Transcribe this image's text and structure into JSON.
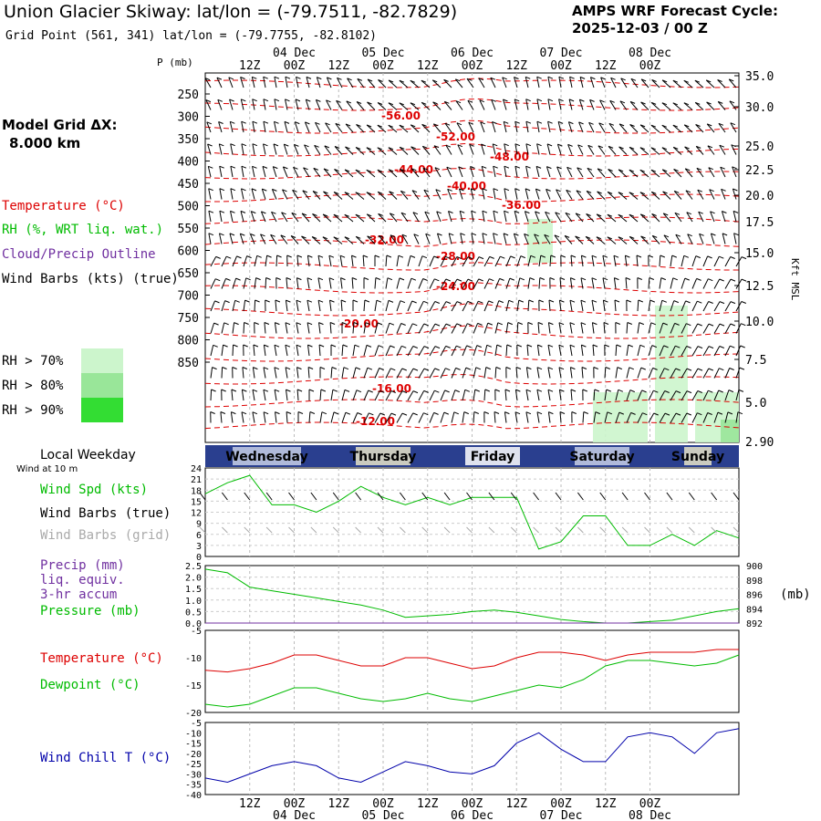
{
  "header": {
    "title": "Union Glacier Skiway:  lat/lon = (-79.7511, -82.7829)",
    "subtitle": "Grid Point (561, 341) lat/lon = (-79.7755, -82.8102)",
    "cycle_label": "AMPS WRF Forecast Cycle:",
    "cycle_value": "2025-12-03 / 00  Z"
  },
  "left_labels": {
    "model_grid": "Model Grid ΔX:",
    "model_grid_value": "8.000 km",
    "temperature": "Temperature (°C)",
    "rh": "RH (%, WRT liq. wat.)",
    "cloud": "Cloud/Precip Outline",
    "wind_barbs": "Wind Barbs (kts) (true)",
    "rh70": "RH > 70%",
    "rh80": "RH > 80%",
    "rh90": "RH > 90%",
    "local_weekday": "Local Weekday",
    "wind10": "Wind at 10 m",
    "wind_spd": "Wind Spd (kts)",
    "wind_true": "Wind Barbs (true)",
    "wind_grid": "Wind Barbs (grid)",
    "precip1": "Precip (mm)",
    "precip2": "liq. equiv.",
    "precip3": "3-hr accum",
    "pressure": "Pressure (mb)",
    "pressure_unit": "(mb)",
    "temp2": "Temperature (°C)",
    "dewpoint": "Dewpoint (°C)",
    "windchill": "Wind Chill T (°C)",
    "p_axis": "P (mb)",
    "kft": "Kft MSL"
  },
  "colors": {
    "temp": "#dd0000",
    "rh": "#00bb00",
    "cloud": "#7030a0",
    "windchill": "#0000aa",
    "grid": "#aaaaaa",
    "rh70": "#ccf5cc",
    "rh80": "#99e699",
    "rh90": "#33dd33",
    "daybar": "#2a3f8f"
  },
  "chart_data": {
    "type": "line",
    "time_ticks_top": [
      "12Z",
      "00Z",
      "12Z",
      "00Z",
      "12Z",
      "00Z",
      "12Z",
      "00Z",
      "12Z",
      "00Z"
    ],
    "date_labels": [
      "04 Dec",
      "05 Dec",
      "06 Dec",
      "07 Dec",
      "08 Dec"
    ],
    "weekdays": [
      "Wednesday",
      "Thursday",
      "Friday",
      "Saturday",
      "Sunday"
    ],
    "sounding": {
      "pressure_ticks": [
        "250",
        "300",
        "350",
        "400",
        "450",
        "500",
        "550",
        "600",
        "650",
        "700",
        "750",
        "800",
        "850"
      ],
      "height_ticks": [
        "35.0",
        "30.0",
        "25.0",
        "22.5",
        "20.0",
        "17.5",
        "15.0",
        "12.5",
        "10.0",
        "7.5",
        "5.0",
        "2.90"
      ],
      "temperature_labels": [
        "-56.00",
        "-52.00",
        "-48.00",
        "-44.00",
        "-40.00",
        "-36.00",
        "-32.00",
        "-28.00",
        "-24.00",
        "-20.00",
        "-16.00",
        "-12.00"
      ]
    },
    "wind10": {
      "ylim": [
        0,
        24
      ],
      "yticks": [
        "24",
        "21",
        "18",
        "15",
        "12",
        "9",
        "6",
        "3",
        "0"
      ],
      "hours": [
        0,
        6,
        12,
        18,
        24,
        30,
        36,
        42,
        48,
        54,
        60,
        66,
        72,
        78,
        84,
        90,
        96,
        102,
        108,
        114,
        120,
        126,
        132,
        138,
        144
      ],
      "speed": [
        17,
        20,
        22,
        14,
        14,
        12,
        15,
        19,
        16,
        14,
        16,
        14,
        16,
        16,
        16,
        2,
        4,
        11,
        11,
        3,
        3,
        6,
        3,
        7,
        5
      ]
    },
    "precip_pressure": {
      "precip_yticks": [
        "2.5",
        "2.0",
        "1.5",
        "1.0",
        "0.5",
        "0.0"
      ],
      "pressure_yticks": [
        "900",
        "898",
        "896",
        "894",
        "892"
      ],
      "precip": [
        0,
        0,
        0,
        0,
        0,
        0,
        0,
        0,
        0,
        0,
        0,
        0,
        0,
        0,
        0,
        0,
        0,
        0,
        0,
        0,
        0,
        0,
        0,
        0,
        0
      ],
      "pressure": [
        899.5,
        899.0,
        897.0,
        896.5,
        896.0,
        895.5,
        895.0,
        894.5,
        893.8,
        892.8,
        893.0,
        893.2,
        893.6,
        893.8,
        893.5,
        893.0,
        892.5,
        892.2,
        892.0,
        892.0,
        892.2,
        892.4,
        893.0,
        893.6,
        894.0
      ]
    },
    "temp_dew": {
      "ylim": [
        -20,
        -5
      ],
      "yticks": [
        "-5",
        "-10",
        "-15",
        "-20"
      ],
      "temperature": [
        -12.3,
        -12.6,
        -12.0,
        -11.0,
        -9.5,
        -9.5,
        -10.5,
        -11.5,
        -11.5,
        -10.0,
        -10.0,
        -11.0,
        -12.0,
        -11.5,
        -10.0,
        -9.0,
        -9.0,
        -9.5,
        -10.5,
        -9.5,
        -9.0,
        -9.0,
        -9.0,
        -8.5,
        -8.5
      ],
      "dewpoint": [
        -18.5,
        -19.0,
        -18.5,
        -17.0,
        -15.5,
        -15.5,
        -16.5,
        -17.5,
        -18.0,
        -17.5,
        -16.5,
        -17.5,
        -18.0,
        -17.0,
        -16.0,
        -15.0,
        -15.5,
        -14.0,
        -11.5,
        -10.5,
        -10.5,
        -11.0,
        -11.5,
        -11.0,
        -9.5
      ]
    },
    "windchill": {
      "ylim": [
        -40,
        -5
      ],
      "yticks": [
        "-5",
        "-10",
        "-15",
        "-20",
        "-25",
        "-30",
        "-35",
        "-40"
      ],
      "values": [
        -32,
        -34,
        -30,
        -26,
        -24,
        -26,
        -32,
        -34,
        -29,
        -24,
        -26,
        -29,
        -30,
        -26,
        -15,
        -10,
        -18,
        -24,
        -24,
        -12,
        -10,
        -12,
        -20,
        -10,
        -8
      ]
    }
  }
}
